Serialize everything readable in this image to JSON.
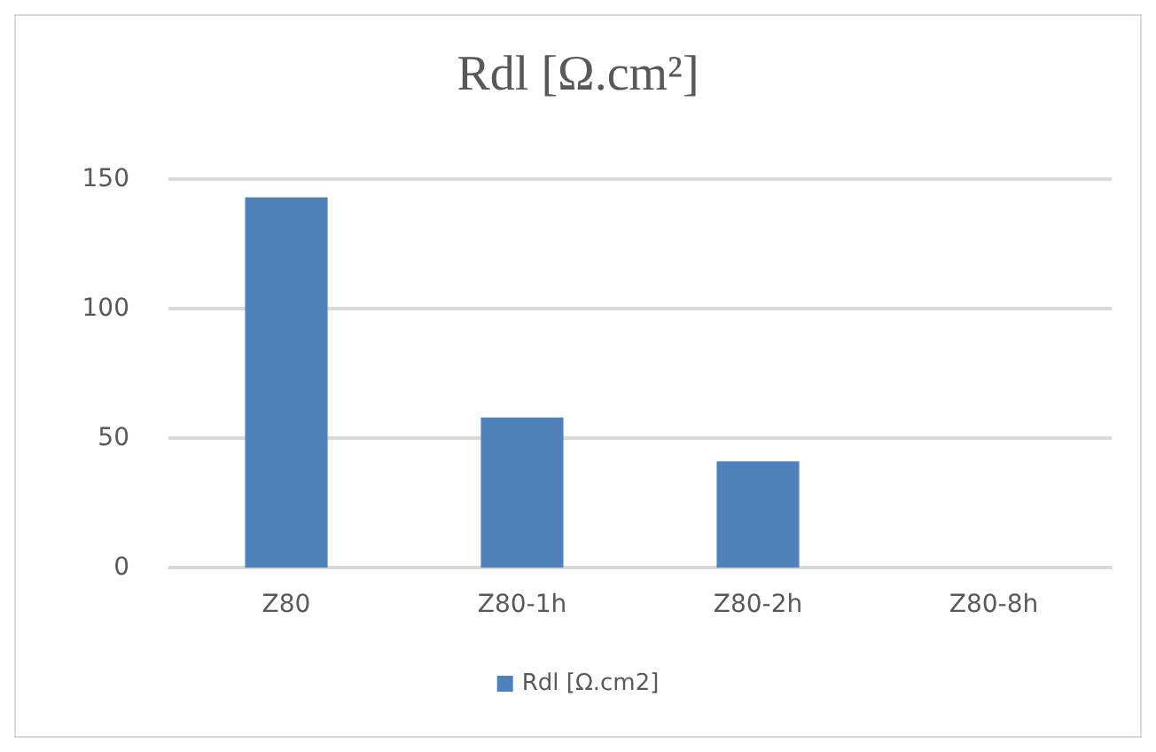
{
  "chart_data": {
    "type": "bar",
    "title": "Rdl [Ω.cm²]",
    "categories": [
      "Z80",
      "Z80-1h",
      "Z80-2h",
      "Z80-8h"
    ],
    "series": [
      {
        "name": "Rdl [Ω.cm2]",
        "color": "#4f81bd",
        "values": [
          143,
          58,
          41,
          0
        ]
      }
    ],
    "ylim": [
      0,
      150
    ],
    "yticks": [
      0,
      50,
      100,
      150
    ],
    "grid": "y",
    "legend": "bottom"
  }
}
